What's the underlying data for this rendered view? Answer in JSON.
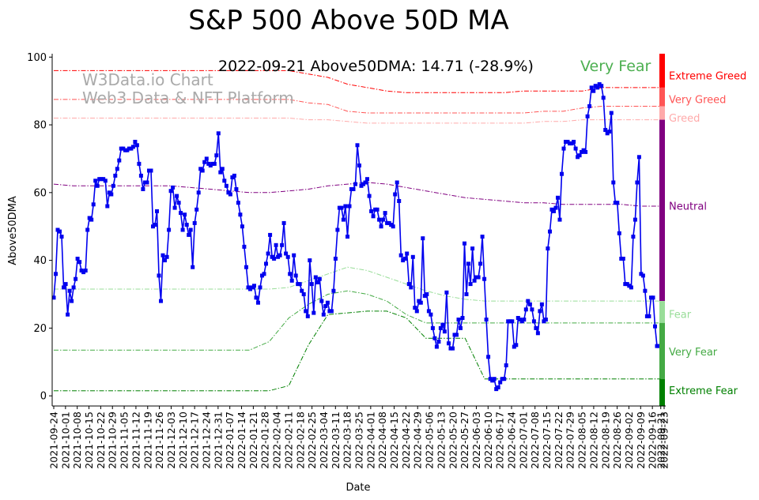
{
  "chart_data": {
    "type": "line",
    "title": "S&P 500 Above 50D MA",
    "xlabel": "Date",
    "ylabel": "Above50DMA",
    "ylim": [
      -3,
      101
    ],
    "yticks": [
      0,
      20,
      40,
      60,
      80,
      100
    ],
    "start_date": "2021-09-24",
    "end_date": "2022-09-23",
    "x_tick_labels": [
      "2021-09-24",
      "2021-10-01",
      "2021-10-08",
      "2021-10-15",
      "2021-10-22",
      "2021-10-29",
      "2021-11-05",
      "2021-11-12",
      "2021-11-19",
      "2021-11-26",
      "2021-12-03",
      "2021-12-10",
      "2021-12-17",
      "2021-12-24",
      "2021-12-31",
      "2022-01-07",
      "2022-01-14",
      "2022-01-21",
      "2022-01-28",
      "2022-02-04",
      "2022-02-11",
      "2022-02-18",
      "2022-02-25",
      "2022-03-04",
      "2022-03-11",
      "2022-03-18",
      "2022-03-25",
      "2022-04-01",
      "2022-04-08",
      "2022-04-15",
      "2022-04-22",
      "2022-04-29",
      "2022-05-06",
      "2022-05-13",
      "2022-05-20",
      "2022-05-27",
      "2022-06-03",
      "2022-06-10",
      "2022-06-17",
      "2022-06-24",
      "2022-07-01",
      "2022-07-08",
      "2022-07-15",
      "2022-07-22",
      "2022-07-29",
      "2022-08-05",
      "2022-08-12",
      "2022-08-19",
      "2022-08-26",
      "2022-09-02",
      "2022-09-09",
      "2022-09-16",
      "2022-09-21",
      "2022-09-23"
    ],
    "annotation": {
      "stat": "2022-09-21 Above50DMA: 14.71 (-28.9%)",
      "mood": "Very Fear",
      "mood_color": "#4caf50"
    },
    "watermark": [
      "W3Data.io Chart",
      "Web3 Data & NFT Platform"
    ],
    "series": [
      {
        "name": "Above50DMA",
        "color": "#0000ee",
        "values": [
          29,
          36,
          49,
          48.5,
          47,
          32,
          33,
          24,
          31,
          28,
          32,
          34.5,
          40.5,
          39.5,
          37,
          36.5,
          37,
          49,
          52.5,
          52,
          56.5,
          63.5,
          62,
          64,
          64,
          64,
          63.5,
          56,
          60,
          59.5,
          62,
          65,
          67,
          69.5,
          73,
          73,
          72.5,
          72.5,
          73,
          73,
          73.5,
          75,
          74,
          68.5,
          65,
          61,
          63,
          63,
          66.5,
          66.5,
          50,
          50.5,
          54.5,
          35.5,
          28,
          41.5,
          40,
          41,
          49,
          60.5,
          61.5,
          55.5,
          59,
          57,
          54,
          49,
          53.5,
          50.5,
          47.5,
          49,
          38,
          51,
          55,
          60,
          67,
          66.5,
          69,
          70,
          68.5,
          68,
          68.5,
          68.5,
          71,
          77.5,
          66,
          67,
          63.5,
          62,
          60,
          59.5,
          64.5,
          65,
          61,
          57,
          53.5,
          50,
          44,
          38,
          32,
          31.5,
          32,
          32.5,
          29,
          27.5,
          32,
          35.5,
          36,
          39,
          42,
          47.5,
          41,
          40.5,
          44.5,
          41,
          41.5,
          44.5,
          51,
          42,
          41,
          36,
          34,
          41.5,
          35.5,
          33,
          33,
          31,
          30,
          25,
          23.5,
          40,
          33,
          24.5,
          35,
          33.5,
          34.5,
          28,
          24,
          26.5,
          27.5,
          25,
          25,
          31,
          40.5,
          49,
          55.5,
          55.5,
          52,
          56,
          47,
          56,
          61,
          61,
          62.5,
          74,
          68,
          62,
          62.5,
          63,
          64,
          59,
          54.5,
          53,
          55,
          55,
          52,
          50,
          52,
          54,
          51,
          51,
          50.5,
          50,
          59.5,
          63,
          57.5,
          41.5,
          40,
          40.5,
          42,
          33,
          32,
          41,
          26,
          25,
          28,
          27.5,
          46.5,
          29.5,
          30,
          25,
          24,
          20,
          17,
          14.5,
          16,
          20,
          21,
          19,
          30.5,
          15.5,
          14,
          14,
          18,
          18,
          22.5,
          20,
          23,
          45,
          30,
          39,
          33,
          43.5,
          34,
          35,
          35,
          39,
          47,
          34.5,
          22.5,
          11.5,
          5,
          4.5,
          5,
          2,
          2.5,
          4,
          5,
          5,
          9,
          22,
          22,
          22,
          14.5,
          15,
          23,
          22.5,
          22,
          22.5,
          25.5,
          28,
          27,
          25.5,
          22,
          20,
          18.5,
          25,
          27,
          22,
          22.5,
          43.5,
          48.5,
          55,
          54.5,
          55.5,
          58.5,
          52,
          65.5,
          73,
          75,
          75,
          74.5,
          74.5,
          75,
          73,
          70.5,
          71,
          72,
          72.5,
          72,
          82.5,
          85.5,
          91,
          90,
          91.5,
          91,
          92,
          91.5,
          88,
          78.5,
          77.5,
          78,
          83.5,
          63,
          57,
          57,
          48,
          40.5,
          40.5,
          33,
          33,
          32.5,
          32,
          47,
          52,
          63,
          70.5,
          36,
          35.5,
          31,
          23.5,
          23.5,
          29,
          29,
          20.5,
          14.71,
          14.71,
          14.71
        ]
      }
    ],
    "thresholds": [
      {
        "name": "Extreme Greed line",
        "color": "#ff0000",
        "values": [
          96,
          96,
          96,
          96,
          96,
          96,
          96,
          96,
          96,
          96,
          96,
          96,
          96,
          95,
          94,
          92,
          91,
          90,
          89.5,
          89.5,
          89.5,
          89.5,
          89.5,
          89.5,
          90,
          90,
          90,
          90,
          91,
          91,
          91,
          91
        ]
      },
      {
        "name": "Very Greed line",
        "color": "#ff5555",
        "values": [
          87.5,
          87.5,
          87.5,
          87.5,
          87.5,
          87.5,
          87.5,
          87.5,
          87.5,
          87.5,
          87.5,
          87.5,
          87.5,
          86.5,
          86,
          84,
          83.5,
          83.5,
          83.5,
          83.5,
          83.5,
          83.5,
          83.5,
          83.5,
          83.5,
          84,
          84,
          85,
          85.5,
          85.5,
          85.5,
          85.5
        ]
      },
      {
        "name": "Greed line",
        "color": "#ffaaaa",
        "values": [
          82,
          82,
          82,
          82,
          82,
          82,
          82,
          82,
          82,
          82,
          82,
          82,
          82,
          81.5,
          81.5,
          81,
          80.5,
          80.5,
          80.5,
          80.5,
          80.5,
          80.5,
          80.5,
          80.5,
          80.5,
          81,
          81,
          81.5,
          81.5,
          81.5,
          81.5,
          81.5
        ]
      },
      {
        "name": "Neutral line",
        "color": "#800080",
        "values": [
          62.5,
          62,
          62,
          62,
          62,
          62,
          62,
          61.5,
          61,
          60.5,
          60,
          60,
          60.5,
          61,
          62,
          62.5,
          63,
          62.5,
          61.5,
          60.5,
          59.5,
          58.5,
          58,
          57.5,
          57,
          57,
          56.5,
          56.5,
          56.5,
          56.5,
          56,
          56
        ]
      },
      {
        "name": "Fear line",
        "color": "#99dd99",
        "values": [
          31.5,
          31.5,
          31.5,
          31.5,
          31.5,
          31.5,
          31.5,
          31.5,
          31.5,
          31.5,
          31.5,
          31.5,
          32,
          34,
          36,
          38,
          37,
          35,
          33,
          31,
          29.5,
          28.5,
          28,
          28,
          28,
          28,
          28,
          28,
          28,
          28,
          28,
          28
        ]
      },
      {
        "name": "Very Fear line",
        "color": "#44aa44",
        "values": [
          13.5,
          13.5,
          13.5,
          13.5,
          13.5,
          13.5,
          13.5,
          13.5,
          13.5,
          13.5,
          13.5,
          16,
          23,
          27,
          30,
          31,
          30,
          28,
          24,
          21.5,
          21.5,
          21.5,
          21.5,
          21.5,
          21.5,
          21.5,
          21.5,
          21.5,
          21.5,
          21.5,
          21.5,
          21.5
        ]
      },
      {
        "name": "Extreme Fear line",
        "color": "#008000",
        "values": [
          1.5,
          1.5,
          1.5,
          1.5,
          1.5,
          1.5,
          1.5,
          1.5,
          1.5,
          1.5,
          1.5,
          1.5,
          3,
          15,
          24,
          24.5,
          25,
          25,
          23,
          17,
          17,
          17,
          5,
          5,
          5,
          5,
          5,
          5,
          5,
          5,
          5,
          5
        ]
      }
    ],
    "bands": [
      {
        "label": "Extreme Greed",
        "label_value": 94.5,
        "color": "#ff0000",
        "from": 91,
        "to": 101
      },
      {
        "label": "Very Greed",
        "label_value": 87.5,
        "color": "#ff5555",
        "from": 85.5,
        "to": 91
      },
      {
        "label": "Greed",
        "label_value": 82,
        "color": "#ffaaaa",
        "from": 81.5,
        "to": 85.5
      },
      {
        "label": "Neutral",
        "label_value": 56,
        "color": "#800080",
        "from": 28,
        "to": 81.5
      },
      {
        "label": "Fear",
        "label_value": 24,
        "color": "#99dd99",
        "from": 21.5,
        "to": 28
      },
      {
        "label": "Very Fear",
        "label_value": 13,
        "color": "#44aa44",
        "from": 5,
        "to": 21.5
      },
      {
        "label": "Extreme Fear",
        "label_value": 1.5,
        "color": "#008000",
        "from": -3,
        "to": 5
      }
    ]
  }
}
